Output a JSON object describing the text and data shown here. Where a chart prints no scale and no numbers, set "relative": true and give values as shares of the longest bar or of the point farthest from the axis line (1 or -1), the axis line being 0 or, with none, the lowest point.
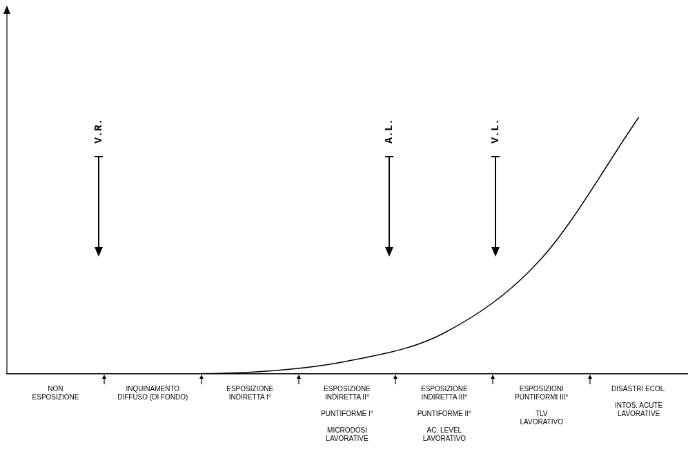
{
  "chart_data": {
    "type": "line",
    "relative": true,
    "categories": [
      "NON\nESPOSIZIONE",
      "INQUINAMENTO\nDIFFUSO (DI FONDO)",
      "ESPOSIZIONE\nINDIRETTA I°",
      "ESPOSIZIONE\nINDIRETTA II°\n\nPUNTIFORME I°\n\nMICRODOSI\nLAVORATIVE",
      "ESPOSIZIONE\nINDIRETTA III°\n\nPUNTIFORME II°\n\nAC. LEVEL\nLAVORATIVO",
      "ESPOSIZIONI\nPUNTIFORMI III°\n\nTLV\nLAVORATIVO",
      "DISASTRI ECOL.\n\nINTOS. ACUTE\nLAVORATIVE"
    ],
    "series": [
      {
        "color": "#000000",
        "values": [
          0,
          0,
          0.007,
          0.05,
          0.16,
          0.45,
          1.0
        ]
      }
    ],
    "marker": "none",
    "line_style": "solid",
    "grid": false,
    "legend": false,
    "annotations": [
      "V.R.",
      "A.L.",
      "V.L."
    ]
  }
}
